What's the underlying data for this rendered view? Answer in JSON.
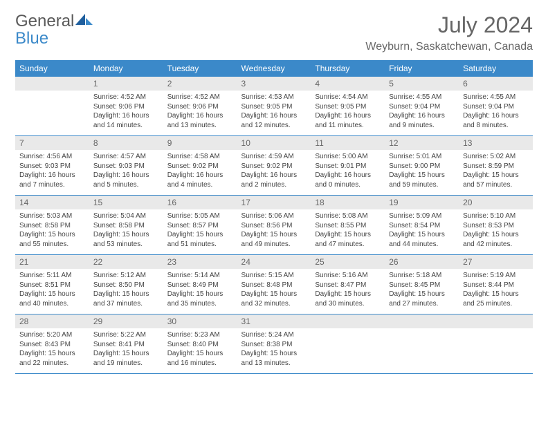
{
  "brand": {
    "part1": "General",
    "part2": "Blue"
  },
  "title": "July 2024",
  "location": "Weyburn, Saskatchewan, Canada",
  "colors": {
    "header_bg": "#3b89c9",
    "header_text": "#ffffff",
    "daynum_bg": "#e9e9e9",
    "border": "#3b89c9",
    "text": "#444444",
    "title_text": "#666666"
  },
  "day_headers": [
    "Sunday",
    "Monday",
    "Tuesday",
    "Wednesday",
    "Thursday",
    "Friday",
    "Saturday"
  ],
  "weeks": [
    {
      "nums": [
        "",
        "1",
        "2",
        "3",
        "4",
        "5",
        "6"
      ],
      "cells": [
        {
          "sunrise": "",
          "sunset": "",
          "day1": "",
          "day2": ""
        },
        {
          "sunrise": "Sunrise: 4:52 AM",
          "sunset": "Sunset: 9:06 PM",
          "day1": "Daylight: 16 hours",
          "day2": "and 14 minutes."
        },
        {
          "sunrise": "Sunrise: 4:52 AM",
          "sunset": "Sunset: 9:06 PM",
          "day1": "Daylight: 16 hours",
          "day2": "and 13 minutes."
        },
        {
          "sunrise": "Sunrise: 4:53 AM",
          "sunset": "Sunset: 9:05 PM",
          "day1": "Daylight: 16 hours",
          "day2": "and 12 minutes."
        },
        {
          "sunrise": "Sunrise: 4:54 AM",
          "sunset": "Sunset: 9:05 PM",
          "day1": "Daylight: 16 hours",
          "day2": "and 11 minutes."
        },
        {
          "sunrise": "Sunrise: 4:55 AM",
          "sunset": "Sunset: 9:04 PM",
          "day1": "Daylight: 16 hours",
          "day2": "and 9 minutes."
        },
        {
          "sunrise": "Sunrise: 4:55 AM",
          "sunset": "Sunset: 9:04 PM",
          "day1": "Daylight: 16 hours",
          "day2": "and 8 minutes."
        }
      ]
    },
    {
      "nums": [
        "7",
        "8",
        "9",
        "10",
        "11",
        "12",
        "13"
      ],
      "cells": [
        {
          "sunrise": "Sunrise: 4:56 AM",
          "sunset": "Sunset: 9:03 PM",
          "day1": "Daylight: 16 hours",
          "day2": "and 7 minutes."
        },
        {
          "sunrise": "Sunrise: 4:57 AM",
          "sunset": "Sunset: 9:03 PM",
          "day1": "Daylight: 16 hours",
          "day2": "and 5 minutes."
        },
        {
          "sunrise": "Sunrise: 4:58 AM",
          "sunset": "Sunset: 9:02 PM",
          "day1": "Daylight: 16 hours",
          "day2": "and 4 minutes."
        },
        {
          "sunrise": "Sunrise: 4:59 AM",
          "sunset": "Sunset: 9:02 PM",
          "day1": "Daylight: 16 hours",
          "day2": "and 2 minutes."
        },
        {
          "sunrise": "Sunrise: 5:00 AM",
          "sunset": "Sunset: 9:01 PM",
          "day1": "Daylight: 16 hours",
          "day2": "and 0 minutes."
        },
        {
          "sunrise": "Sunrise: 5:01 AM",
          "sunset": "Sunset: 9:00 PM",
          "day1": "Daylight: 15 hours",
          "day2": "and 59 minutes."
        },
        {
          "sunrise": "Sunrise: 5:02 AM",
          "sunset": "Sunset: 8:59 PM",
          "day1": "Daylight: 15 hours",
          "day2": "and 57 minutes."
        }
      ]
    },
    {
      "nums": [
        "14",
        "15",
        "16",
        "17",
        "18",
        "19",
        "20"
      ],
      "cells": [
        {
          "sunrise": "Sunrise: 5:03 AM",
          "sunset": "Sunset: 8:58 PM",
          "day1": "Daylight: 15 hours",
          "day2": "and 55 minutes."
        },
        {
          "sunrise": "Sunrise: 5:04 AM",
          "sunset": "Sunset: 8:58 PM",
          "day1": "Daylight: 15 hours",
          "day2": "and 53 minutes."
        },
        {
          "sunrise": "Sunrise: 5:05 AM",
          "sunset": "Sunset: 8:57 PM",
          "day1": "Daylight: 15 hours",
          "day2": "and 51 minutes."
        },
        {
          "sunrise": "Sunrise: 5:06 AM",
          "sunset": "Sunset: 8:56 PM",
          "day1": "Daylight: 15 hours",
          "day2": "and 49 minutes."
        },
        {
          "sunrise": "Sunrise: 5:08 AM",
          "sunset": "Sunset: 8:55 PM",
          "day1": "Daylight: 15 hours",
          "day2": "and 47 minutes."
        },
        {
          "sunrise": "Sunrise: 5:09 AM",
          "sunset": "Sunset: 8:54 PM",
          "day1": "Daylight: 15 hours",
          "day2": "and 44 minutes."
        },
        {
          "sunrise": "Sunrise: 5:10 AM",
          "sunset": "Sunset: 8:53 PM",
          "day1": "Daylight: 15 hours",
          "day2": "and 42 minutes."
        }
      ]
    },
    {
      "nums": [
        "21",
        "22",
        "23",
        "24",
        "25",
        "26",
        "27"
      ],
      "cells": [
        {
          "sunrise": "Sunrise: 5:11 AM",
          "sunset": "Sunset: 8:51 PM",
          "day1": "Daylight: 15 hours",
          "day2": "and 40 minutes."
        },
        {
          "sunrise": "Sunrise: 5:12 AM",
          "sunset": "Sunset: 8:50 PM",
          "day1": "Daylight: 15 hours",
          "day2": "and 37 minutes."
        },
        {
          "sunrise": "Sunrise: 5:14 AM",
          "sunset": "Sunset: 8:49 PM",
          "day1": "Daylight: 15 hours",
          "day2": "and 35 minutes."
        },
        {
          "sunrise": "Sunrise: 5:15 AM",
          "sunset": "Sunset: 8:48 PM",
          "day1": "Daylight: 15 hours",
          "day2": "and 32 minutes."
        },
        {
          "sunrise": "Sunrise: 5:16 AM",
          "sunset": "Sunset: 8:47 PM",
          "day1": "Daylight: 15 hours",
          "day2": "and 30 minutes."
        },
        {
          "sunrise": "Sunrise: 5:18 AM",
          "sunset": "Sunset: 8:45 PM",
          "day1": "Daylight: 15 hours",
          "day2": "and 27 minutes."
        },
        {
          "sunrise": "Sunrise: 5:19 AM",
          "sunset": "Sunset: 8:44 PM",
          "day1": "Daylight: 15 hours",
          "day2": "and 25 minutes."
        }
      ]
    },
    {
      "nums": [
        "28",
        "29",
        "30",
        "31",
        "",
        "",
        ""
      ],
      "cells": [
        {
          "sunrise": "Sunrise: 5:20 AM",
          "sunset": "Sunset: 8:43 PM",
          "day1": "Daylight: 15 hours",
          "day2": "and 22 minutes."
        },
        {
          "sunrise": "Sunrise: 5:22 AM",
          "sunset": "Sunset: 8:41 PM",
          "day1": "Daylight: 15 hours",
          "day2": "and 19 minutes."
        },
        {
          "sunrise": "Sunrise: 5:23 AM",
          "sunset": "Sunset: 8:40 PM",
          "day1": "Daylight: 15 hours",
          "day2": "and 16 minutes."
        },
        {
          "sunrise": "Sunrise: 5:24 AM",
          "sunset": "Sunset: 8:38 PM",
          "day1": "Daylight: 15 hours",
          "day2": "and 13 minutes."
        },
        {
          "sunrise": "",
          "sunset": "",
          "day1": "",
          "day2": ""
        },
        {
          "sunrise": "",
          "sunset": "",
          "day1": "",
          "day2": ""
        },
        {
          "sunrise": "",
          "sunset": "",
          "day1": "",
          "day2": ""
        }
      ]
    }
  ]
}
